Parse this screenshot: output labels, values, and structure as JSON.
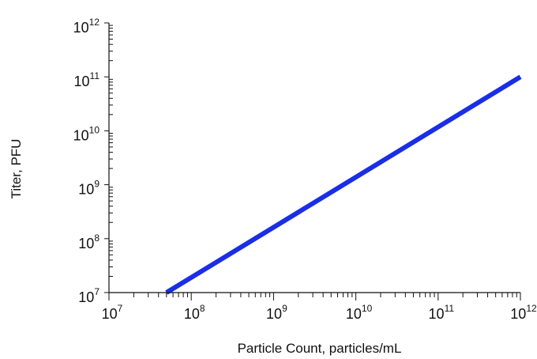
{
  "chart_data": {
    "type": "line",
    "title": "",
    "xlabel": "Particle Count, particles/mL",
    "ylabel": "Titer, PFU",
    "xscale": "log",
    "yscale": "log",
    "xlim": [
      10000000,
      1000000000000
    ],
    "ylim": [
      10000000,
      1000000000000
    ],
    "x_ticks": [
      {
        "value": 10000000,
        "base": "10",
        "exp": "7"
      },
      {
        "value": 100000000,
        "base": "10",
        "exp": "8"
      },
      {
        "value": 1000000000,
        "base": "10",
        "exp": "9"
      },
      {
        "value": 10000000000,
        "base": "10",
        "exp": "10"
      },
      {
        "value": 100000000000,
        "base": "10",
        "exp": "11"
      },
      {
        "value": 1000000000000,
        "base": "10",
        "exp": "12"
      }
    ],
    "y_ticks": [
      {
        "value": 10000000,
        "base": "10",
        "exp": "7"
      },
      {
        "value": 100000000,
        "base": "10",
        "exp": "8"
      },
      {
        "value": 1000000000,
        "base": "10",
        "exp": "9"
      },
      {
        "value": 10000000000,
        "base": "10",
        "exp": "10"
      },
      {
        "value": 100000000000,
        "base": "10",
        "exp": "11"
      },
      {
        "value": 1000000000000,
        "base": "10",
        "exp": "12"
      }
    ],
    "grid": false,
    "legend": "none",
    "series": [
      {
        "color": "#1a2ee6",
        "x": [
          50000000,
          1000000000000
        ],
        "y": [
          10000000,
          100000000000
        ]
      }
    ]
  }
}
